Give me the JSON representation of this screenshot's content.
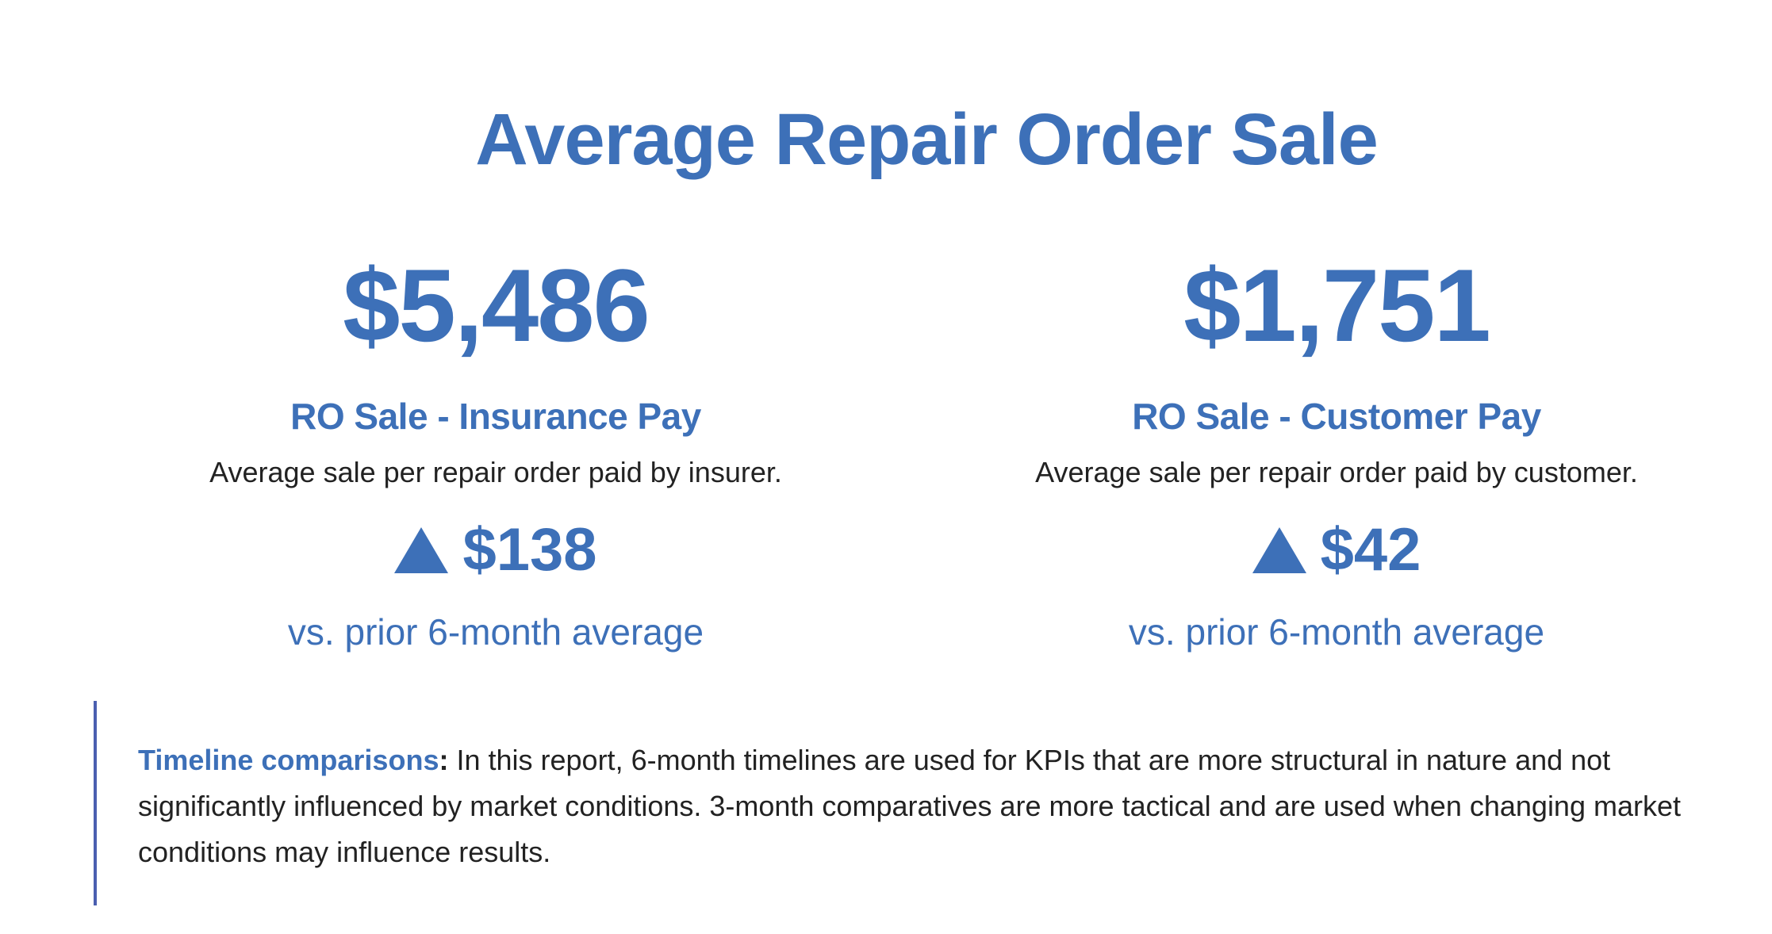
{
  "page": {
    "title": "Average Repair Order Sale"
  },
  "kpis": [
    {
      "value": "$5,486",
      "label": "RO Sale - Insurance Pay",
      "description": "Average sale per repair order paid by insurer.",
      "delta_direction": "up",
      "delta": "$138",
      "comparison": "vs. prior 6-month average"
    },
    {
      "value": "$1,751",
      "label": "RO Sale - Customer Pay",
      "description": "Average sale per repair order paid by customer.",
      "delta_direction": "up",
      "delta": "$42",
      "comparison": "vs. prior 6-month average"
    }
  ],
  "note": {
    "lead": "Timeline comparisons",
    "colon": ":",
    "body": " In this report, 6-month timelines are used for KPIs that are more structural in nature and not significantly influenced by market conditions. 3-month comparatives are more tactical and are used when changing market conditions may influence results."
  },
  "colors": {
    "accent": "#3d70b8",
    "text": "#222222",
    "note_border": "#4a5fb0"
  },
  "icons": {
    "delta_up": "triangle-up-icon"
  }
}
